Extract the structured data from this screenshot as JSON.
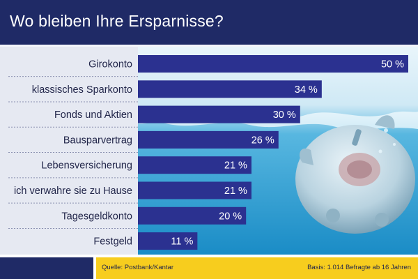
{
  "header": {
    "title": "Wo bleiben Ihre Ersparnisse?"
  },
  "footer": {
    "source": "Quelle: Postbank/Kantar",
    "basis": "Basis: 1.014 Befragte ab 16 Jahren"
  },
  "colors": {
    "header_bg": "#1f2a66",
    "bar": "#2b3190",
    "label_panel": "#e6e9f2",
    "footer_accent": "#f7cd1e",
    "water_top": "#dff1f9",
    "water_bottom": "#1e93cc"
  },
  "illustration": {
    "icon": "piggy-bank-icon",
    "subject": "piggy-bank-underwater"
  },
  "chart_data": {
    "type": "bar",
    "orientation": "horizontal",
    "title": "Wo bleiben Ihre Ersparnisse?",
    "categories": [
      "Girokonto",
      "klassisches Sparkonto",
      "Fonds und Aktien",
      "Bausparvertrag",
      "Lebensversicherung",
      "ich verwahre sie zu Hause",
      "Tagesgeldkonto",
      "Festgeld"
    ],
    "values": [
      50,
      34,
      30,
      26,
      21,
      21,
      20,
      11
    ],
    "value_labels": [
      "50 %",
      "34 %",
      "30 %",
      "26 %",
      "21 %",
      "21 %",
      "20 %",
      "11 %"
    ],
    "unit": "%",
    "xlim": [
      0,
      50
    ],
    "grid": false,
    "legend": "none"
  }
}
